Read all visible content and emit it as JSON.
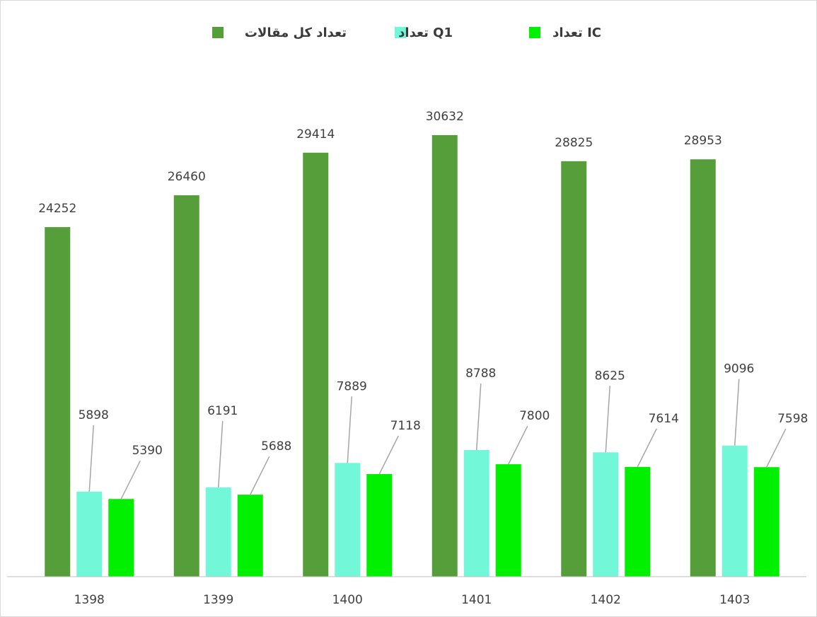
{
  "chart_data": {
    "type": "bar",
    "categories": [
      "1398",
      "1399",
      "1400",
      "1401",
      "1402",
      "1403"
    ],
    "series": [
      {
        "name": "تعداد کل مقالات",
        "color": "#559e3a",
        "values": [
          24252,
          26460,
          29414,
          30632,
          28825,
          28953
        ]
      },
      {
        "name": "تعداد Q1",
        "color": "#73f7d9",
        "values": [
          5898,
          6191,
          7889,
          8788,
          8625,
          9096
        ]
      },
      {
        "name": "تعداد IC",
        "color": "#00f000",
        "values": [
          5390,
          5688,
          7118,
          7800,
          7614,
          7598
        ]
      }
    ],
    "ylim": [
      0,
      35000
    ]
  }
}
